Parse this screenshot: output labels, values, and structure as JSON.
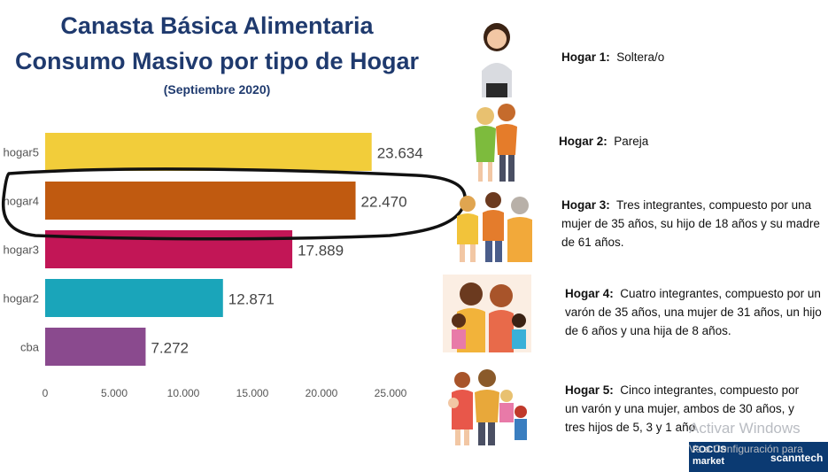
{
  "title": {
    "line1": "Canasta Básica Alimentaria",
    "line2": "Consumo Masivo por tipo de Hogar",
    "line3": "(Septiembre 2020)"
  },
  "chart_data": {
    "type": "bar",
    "orientation": "horizontal",
    "categories": [
      "hogar5",
      "hogar4",
      "hogar3",
      "hogar2",
      "cba"
    ],
    "values": [
      23634,
      22470,
      17889,
      12871,
      7272
    ],
    "value_labels": [
      "23.634",
      "22.470",
      "17.889",
      "12.871",
      "7.272"
    ],
    "colors": [
      "#f2cd3a",
      "#c05a10",
      "#c21656",
      "#1aa5ba",
      "#8a4a8e"
    ],
    "xticks": [
      0,
      5000,
      10000,
      15000,
      20000,
      25000
    ],
    "xtick_labels": [
      "0",
      "5.000",
      "10.000",
      "15.000",
      "20.000",
      "25.000"
    ],
    "xlim": [
      0,
      25000
    ],
    "grid": false,
    "legend": "none",
    "annotation": "hand-drawn oval around hogar4"
  },
  "households": [
    {
      "label": "Hogar 1:",
      "text": "Soltera/o",
      "icon": "single-person-icon"
    },
    {
      "label": "Hogar 2:",
      "text": "Pareja",
      "icon": "couple-icon"
    },
    {
      "label": "Hogar 3:",
      "text": "Tres integrantes, compuesto por una mujer de 35 años, su hijo de 18 años y su madre de 61 años.",
      "icon": "three-member-family-icon"
    },
    {
      "label": "Hogar 4:",
      "text": "Cuatro integrantes, compuesto por un varón de 35 años, una mujer de 31 años, un hijo de 6 años y una hija de 8 años.",
      "icon": "four-member-family-icon"
    },
    {
      "label": "Hogar 5:",
      "text": "Cinco integrantes, compuesto por un varón y una mujer, ambos de 30 años, y tres hijos de 5, 3 y 1 año",
      "icon": "five-member-family-icon"
    }
  ],
  "watermark": {
    "line1": "Activar Windows",
    "line2": "Ve a Configuración para"
  },
  "logos": {
    "focus_line1": "FOCUS",
    "focus_line2": "market",
    "scanntech": "scanntech"
  }
}
